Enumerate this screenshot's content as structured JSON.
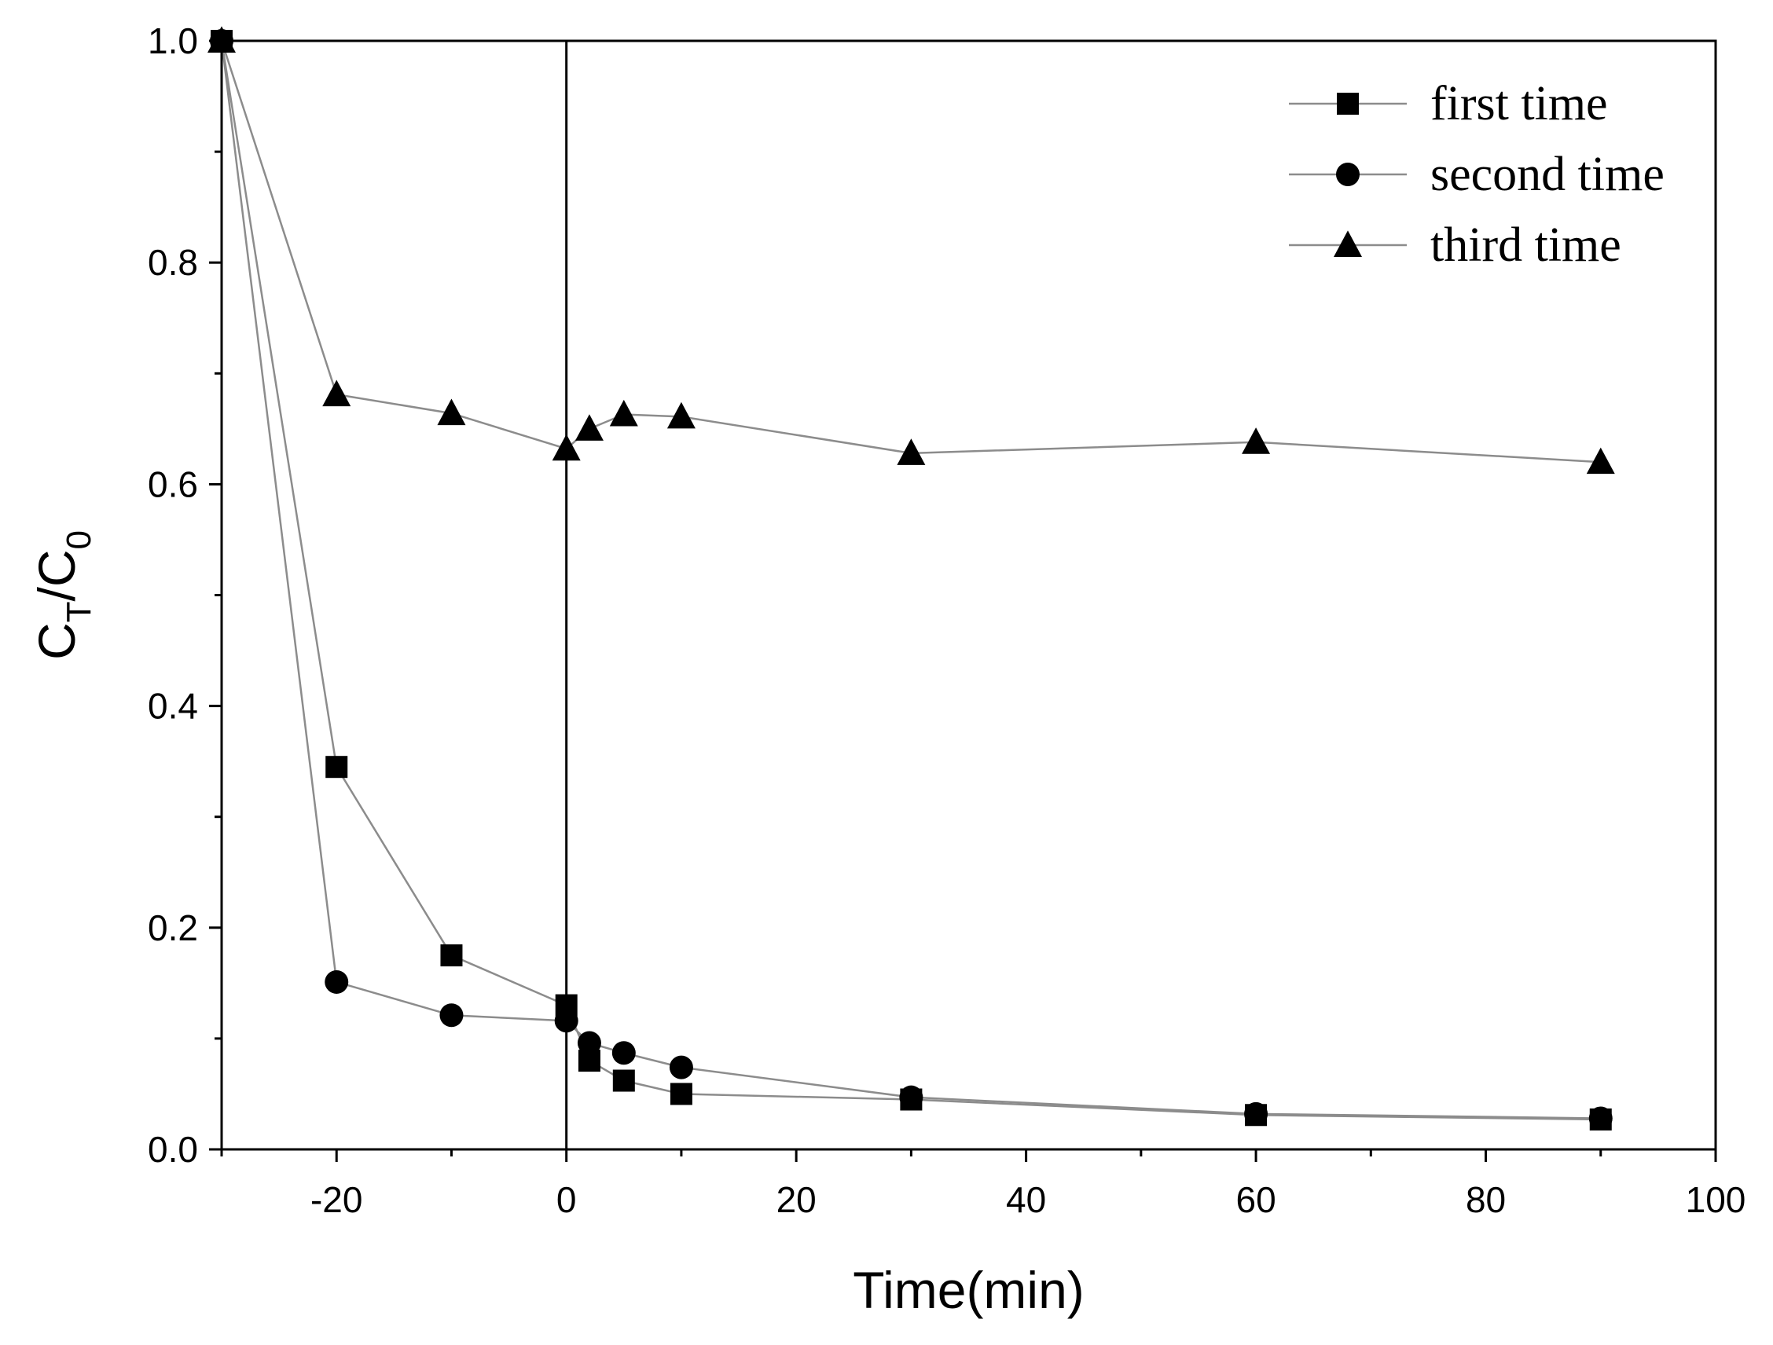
{
  "chart_data": {
    "type": "line",
    "title": "",
    "xlabel": "Time(min)",
    "ylabel": {
      "main": "C",
      "sub1": "T",
      "sep": "/",
      "main2": "C",
      "sub2": "0"
    },
    "xlim": [
      -30,
      100
    ],
    "ylim": [
      0.0,
      1.0
    ],
    "xticks": [
      -20,
      0,
      20,
      40,
      60,
      80,
      100
    ],
    "xtick_labels": [
      "-20",
      "0",
      "20",
      "40",
      "60",
      "80",
      "100"
    ],
    "yticks": [
      0.0,
      0.2,
      0.4,
      0.6,
      0.8,
      1.0
    ],
    "ytick_labels": [
      "0.0",
      "0.2",
      "0.4",
      "0.6",
      "0.8",
      "1.0"
    ],
    "vertical_reference_line_x": 0,
    "legend_position": "top-right",
    "grid": false,
    "x": [
      -30,
      -20,
      -10,
      0,
      2,
      5,
      10,
      30,
      60,
      90
    ],
    "series": [
      {
        "name": "first time",
        "marker": "square",
        "values": [
          1.0,
          0.345,
          0.175,
          0.13,
          0.08,
          0.062,
          0.05,
          0.045,
          0.031,
          0.027
        ]
      },
      {
        "name": "second time",
        "marker": "circle",
        "values": [
          1.0,
          0.151,
          0.121,
          0.116,
          0.096,
          0.087,
          0.074,
          0.047,
          0.032,
          0.028
        ]
      },
      {
        "name": "third time",
        "marker": "triangle",
        "values": [
          1.0,
          0.681,
          0.664,
          0.632,
          0.65,
          0.663,
          0.661,
          0.628,
          0.638,
          0.62
        ]
      }
    ],
    "colors": {
      "line": "#8c8c8c",
      "marker": "#000000",
      "axis": "#000000"
    }
  }
}
